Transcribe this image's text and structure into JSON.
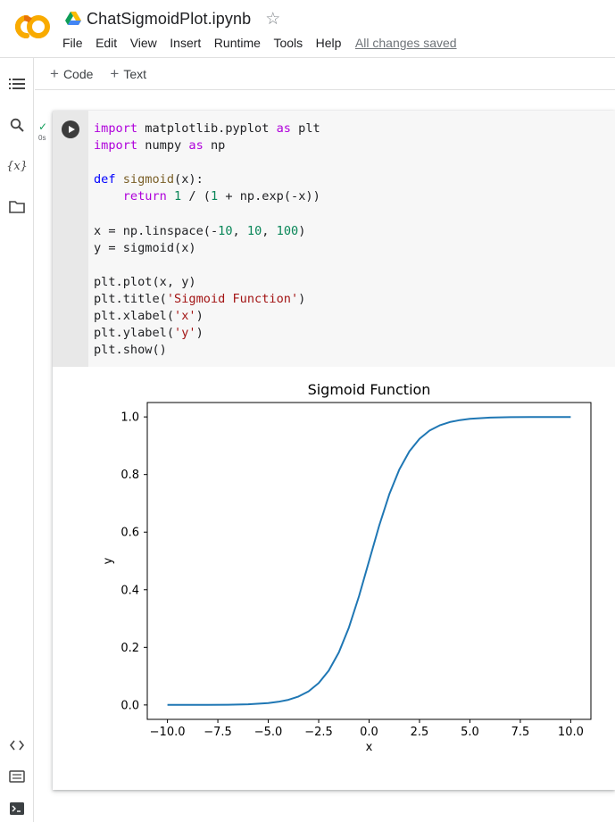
{
  "app": {
    "doc_title": "ChatSigmoidPlot.ipynb",
    "logo_text": "CO",
    "menu": [
      "File",
      "Edit",
      "View",
      "Insert",
      "Runtime",
      "Tools",
      "Help"
    ],
    "save_status": "All changes saved"
  },
  "toolbar": {
    "add_code": "Code",
    "add_text": "Text"
  },
  "sidebar": {
    "icons": [
      "toc-icon",
      "search-icon",
      "variables-icon",
      "folder-icon",
      "code-snippets-icon",
      "command-palette-icon",
      "terminal-icon"
    ],
    "variables_label": "{x}"
  },
  "cell": {
    "exec_time": "0s",
    "code_lines": [
      "import matplotlib.pyplot as plt",
      "import numpy as np",
      "",
      "def sigmoid(x):",
      "    return 1 / (1 + np.exp(-x))",
      "",
      "x = np.linspace(-10, 10, 100)",
      "y = sigmoid(x)",
      "",
      "plt.plot(x, y)",
      "plt.title('Sigmoid Function')",
      "plt.xlabel('x')",
      "plt.ylabel('y')",
      "plt.show()"
    ]
  },
  "chart_data": {
    "type": "line",
    "title": "Sigmoid Function",
    "xlabel": "x",
    "ylabel": "y",
    "xlim": [
      -11,
      11
    ],
    "ylim": [
      -0.05,
      1.05
    ],
    "xticks": [
      -10.0,
      -7.5,
      -5.0,
      -2.5,
      0.0,
      2.5,
      5.0,
      7.5,
      10.0
    ],
    "xtick_labels": [
      "−10.0",
      "−7.5",
      "−5.0",
      "−2.5",
      "0.0",
      "2.5",
      "5.0",
      "7.5",
      "10.0"
    ],
    "yticks": [
      0.0,
      0.2,
      0.4,
      0.6,
      0.8,
      1.0
    ],
    "ytick_labels": [
      "0.0",
      "0.2",
      "0.4",
      "0.6",
      "0.8",
      "1.0"
    ],
    "grid": false,
    "line_color": "#1f77b4",
    "series": [
      {
        "x": [
          -10.0,
          -9.0,
          -8.0,
          -7.0,
          -6.0,
          -5.0,
          -4.5,
          -4.0,
          -3.5,
          -3.0,
          -2.5,
          -2.0,
          -1.5,
          -1.0,
          -0.5,
          0.0,
          0.5,
          1.0,
          1.5,
          2.0,
          2.5,
          3.0,
          3.5,
          4.0,
          4.5,
          5.0,
          6.0,
          7.0,
          8.0,
          9.0,
          10.0
        ],
        "values": [
          5e-05,
          0.00012,
          0.00034,
          0.00091,
          0.00247,
          0.00669,
          0.01099,
          0.01799,
          0.02931,
          0.04743,
          0.07586,
          0.1192,
          0.18243,
          0.26894,
          0.37754,
          0.5,
          0.62246,
          0.73106,
          0.81757,
          0.8808,
          0.92414,
          0.95257,
          0.97069,
          0.98201,
          0.98901,
          0.99331,
          0.99753,
          0.99909,
          0.99966,
          0.99988,
          0.99995
        ]
      }
    ]
  }
}
